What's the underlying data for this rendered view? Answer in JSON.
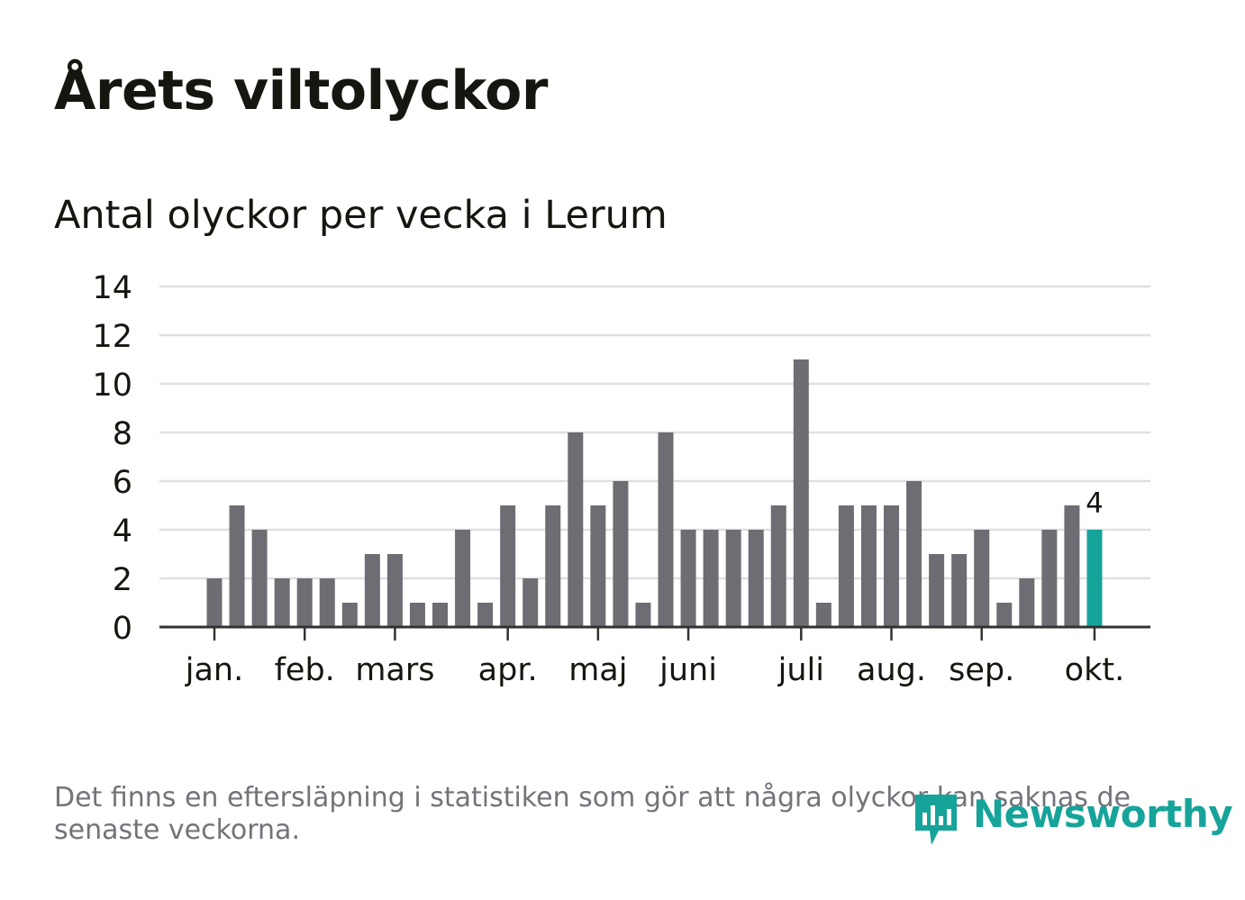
{
  "title": "Årets viltolyckor",
  "subtitle": "Antal olyckor per vecka i Lerum",
  "footnote": "Det finns en eftersläpning i statistiken som gör att några olyckor kan saknas de senaste veckorna.",
  "logo_text": "Newsworthy",
  "colors": {
    "bar": "#6e6d73",
    "highlight": "#16a39a",
    "grid": "#e0e0e0",
    "axis": "#333333",
    "text": "#16150f"
  },
  "chart_data": {
    "type": "bar",
    "title": "Årets viltolyckor",
    "subtitle": "Antal olyckor per vecka i Lerum",
    "xlabel": "",
    "ylabel": "",
    "ylim": [
      0,
      14
    ],
    "yticks": [
      0,
      2,
      4,
      6,
      8,
      10,
      12,
      14
    ],
    "grid": true,
    "weeks": [
      1,
      2,
      3,
      4,
      5,
      6,
      7,
      8,
      9,
      10,
      11,
      12,
      13,
      14,
      15,
      16,
      17,
      18,
      19,
      20,
      21,
      22,
      23,
      24,
      25,
      26,
      27,
      28,
      29,
      30,
      31,
      32,
      33,
      34,
      35,
      36,
      37,
      38,
      39,
      40
    ],
    "values": [
      2,
      5,
      4,
      2,
      2,
      2,
      1,
      3,
      3,
      1,
      1,
      4,
      1,
      5,
      2,
      5,
      8,
      5,
      6,
      1,
      8,
      4,
      4,
      4,
      4,
      5,
      11,
      1,
      5,
      5,
      5,
      6,
      3,
      3,
      4,
      1,
      2,
      4,
      5,
      4
    ],
    "highlight_index": 39,
    "highlight_label": "4",
    "month_ticks": [
      {
        "label": "jan.",
        "week": 1
      },
      {
        "label": "feb.",
        "week": 5
      },
      {
        "label": "mars",
        "week": 9
      },
      {
        "label": "apr.",
        "week": 14
      },
      {
        "label": "maj",
        "week": 18
      },
      {
        "label": "juni",
        "week": 22
      },
      {
        "label": "juli",
        "week": 27
      },
      {
        "label": "aug.",
        "week": 31
      },
      {
        "label": "sep.",
        "week": 35
      },
      {
        "label": "okt.",
        "week": 40
      }
    ]
  }
}
